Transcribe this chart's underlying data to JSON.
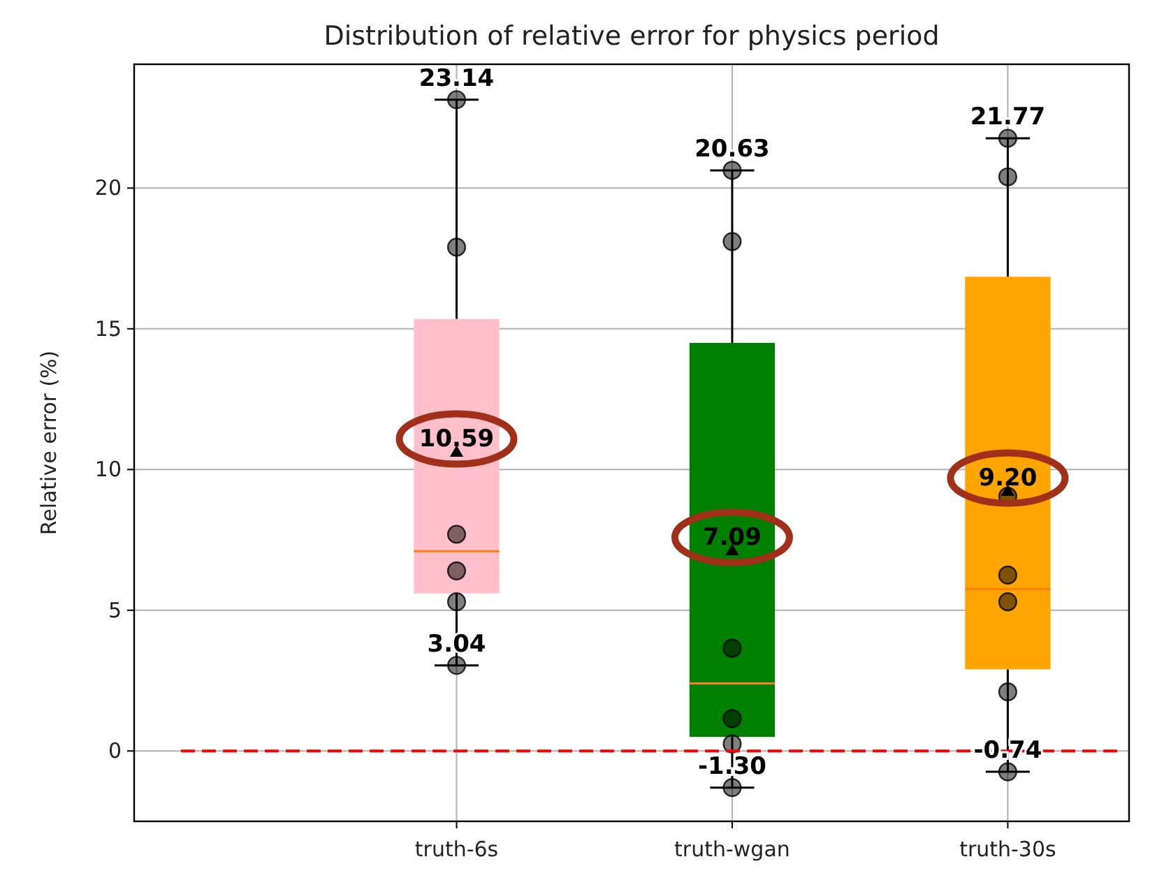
{
  "chart_data": {
    "type": "box",
    "title": "Distribution of relative error for physics period",
    "ylabel": "Relative error (%)",
    "categories": [
      "truth-6s",
      "truth-wgan",
      "truth-30s"
    ],
    "ylim": [
      -2.5,
      24.4
    ],
    "yticks": [
      0,
      5,
      10,
      15,
      20
    ],
    "grid": true,
    "series": [
      {
        "colors": [
          "#ffc0cb",
          "#008000",
          "#ffa500"
        ],
        "boxes": [
          {
            "low": 3.04,
            "q1": 5.6,
            "median": 7.1,
            "q3": 15.35,
            "high": 23.14,
            "mean": 10.59
          },
          {
            "low": -1.3,
            "q1": 0.5,
            "median": 2.4,
            "q3": 14.5,
            "high": 20.63,
            "mean": 7.09
          },
          {
            "low": -0.74,
            "q1": 2.9,
            "median": 5.75,
            "q3": 16.85,
            "high": 21.77,
            "mean": 9.2
          }
        ]
      },
      {
        "type": "scatter",
        "marker": "circle",
        "color": "#000000",
        "x": [
          "truth-6s",
          "truth-6s",
          "truth-6s",
          "truth-6s",
          "truth-6s",
          "truth-6s",
          "truth-wgan",
          "truth-wgan",
          "truth-wgan",
          "truth-wgan",
          "truth-wgan",
          "truth-wgan",
          "truth-30s",
          "truth-30s",
          "truth-30s",
          "truth-30s",
          "truth-30s",
          "truth-30s",
          "truth-30s"
        ],
        "values": [
          23.14,
          17.9,
          7.7,
          6.4,
          5.3,
          3.04,
          20.63,
          18.1,
          3.65,
          1.15,
          0.25,
          -1.3,
          21.77,
          20.4,
          9.05,
          6.25,
          5.3,
          2.1,
          -0.74
        ]
      }
    ],
    "ref_lines": [
      {
        "axis": "y",
        "value": 0,
        "color": "#ff0000",
        "line_style": "dashed"
      }
    ],
    "annotations": [
      {
        "text": "23.14",
        "x": "truth-6s",
        "y": 23.14
      },
      {
        "text": "3.04",
        "x": "truth-6s",
        "y": 3.04
      },
      "10.59",
      {
        "text": "20.63",
        "x": "truth-wgan",
        "y": 20.63
      },
      {
        "text": "-1.30",
        "x": "truth-wgan",
        "y": -1.3
      },
      "7.09",
      {
        "text": "21.77",
        "x": "truth-30s",
        "y": 21.77
      },
      {
        "text": "-0.74",
        "x": "truth-30s",
        "y": -0.74
      },
      "9.20"
    ]
  }
}
